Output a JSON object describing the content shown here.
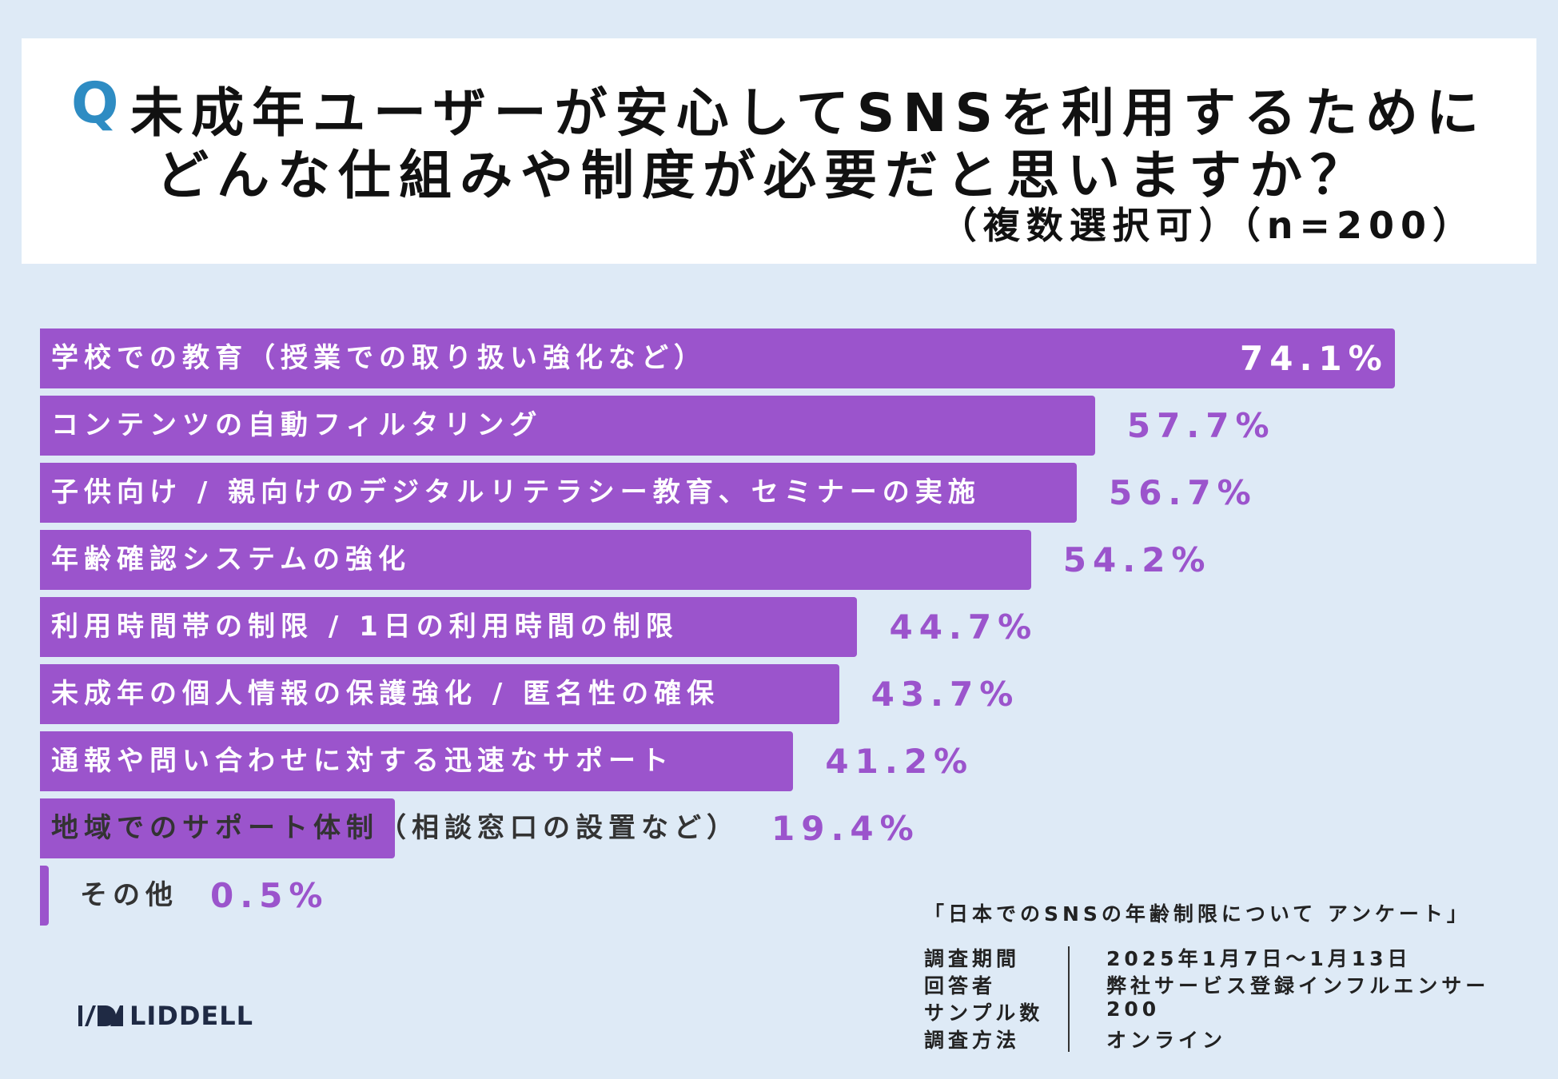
{
  "header": {
    "q_mark": "Q",
    "title_line1": "未成年ユーザーが安心してSNSを利用するために",
    "title_line2": "どんな仕組みや制度が必要だと思いますか？",
    "subtitle": "（複数選択可）（n=200）"
  },
  "chart_data": {
    "type": "bar",
    "orientation": "horizontal",
    "categories": [
      "学校での教育（授業での取り扱い強化など）",
      "コンテンツの自動フィルタリング",
      "子供向け / 親向けのデジタルリテラシー教育、セミナーの実施",
      "年齢確認システムの強化",
      "利用時間帯の制限 / 1日の利用時間の制限",
      "未成年の個人情報の保護強化 / 匿名性の確保",
      "通報や問い合わせに対する迅速なサポート",
      "地域でのサポート体制（相談窓口の設置など）",
      "その他"
    ],
    "values": [
      74.1,
      57.7,
      56.7,
      54.2,
      44.7,
      43.7,
      41.2,
      19.4,
      0.5
    ],
    "value_labels": [
      "74.1%",
      "57.7%",
      "56.7%",
      "54.2%",
      "44.7%",
      "43.7%",
      "41.2%",
      "19.4%",
      "0.5%"
    ],
    "unit": "%",
    "xlim": [
      0,
      100
    ],
    "bar_color": "#9b54cc",
    "grid": false
  },
  "survey": {
    "title": "「日本でのSNSの年齢制限について アンケート」",
    "rows": [
      {
        "key": "調査期間",
        "value": "2025年1月7日〜1月13日"
      },
      {
        "key": "回答者",
        "value": "弊社サービス登録インフルエンサー"
      },
      {
        "key": "サンプル数",
        "value": "200"
      },
      {
        "key": "調査方法",
        "value": "オンライン"
      }
    ]
  },
  "logo": {
    "text": "LIDDELL"
  },
  "colors": {
    "background": "#deeaf6",
    "accent": "#2e8cc3",
    "bar": "#9b54cc"
  }
}
